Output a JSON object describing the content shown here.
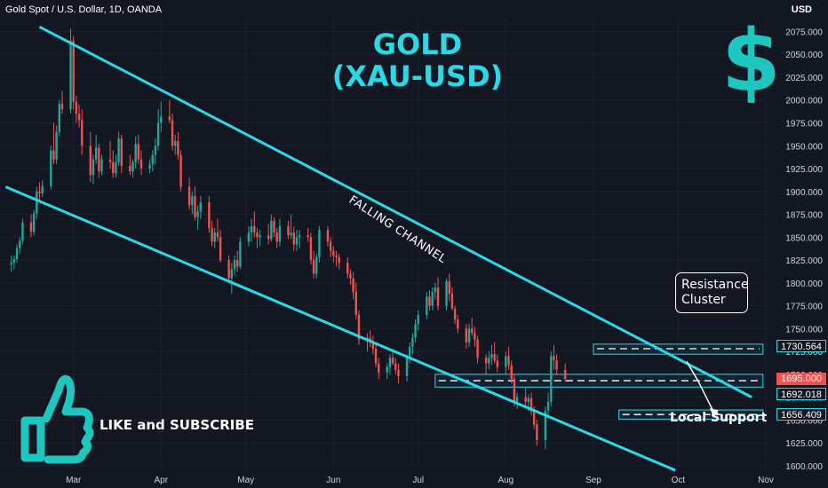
{
  "header": {
    "symbol_line": "Gold Spot / U.S. Dollar, 1D, OANDA",
    "currency": "USD"
  },
  "overlay": {
    "title_line1": "GOLD",
    "title_line2": "(XAU-USD)",
    "dollar_sign": "$",
    "dollar_icon": "dollar-icon",
    "like_text": "LIKE and SUBSCRIBE",
    "thumb_icon": "thumbs-up-icon",
    "channel_label": "FALLING CHANNEL",
    "resistance_label_line1": "Resistance",
    "resistance_label_line2": "Cluster",
    "support_label": "Local Support"
  },
  "colors": {
    "accent": "#2ad9e8",
    "bull": "#26a69a",
    "bear": "#ef5350",
    "background": "#131722",
    "grid": "#1e222d"
  },
  "chart_data": {
    "type": "candlestick",
    "title": "GOLD (XAU-USD)",
    "y_axis": {
      "range": [
        1597,
        2090
      ],
      "ticks": [
        1600,
        1625,
        1650,
        1675,
        1700,
        1725,
        1750,
        1775,
        1800,
        1825,
        1850,
        1875,
        1900,
        1925,
        1950,
        1975,
        2000,
        2025,
        2050,
        2075
      ],
      "tick_labels": [
        "1600.000",
        "1625.000",
        "1650.000",
        "1675.000",
        "1700.000",
        "1725.000",
        "1750.000",
        "1775.000",
        "1800.000",
        "1825.000",
        "1850.000",
        "1875.000",
        "1900.000",
        "1925.000",
        "1950.000",
        "1975.000",
        "2000.000",
        "2025.000",
        "2050.000",
        "2075.000"
      ]
    },
    "x_axis": {
      "range": [
        "2022-02-03",
        "2022-11-01"
      ],
      "tick_labels": [
        "Mar",
        "Apr",
        "May",
        "Jun",
        "Jul",
        "Aug",
        "Sep",
        "Oct",
        "Nov"
      ],
      "tick_dates": [
        "2022-03-01",
        "2022-04-01",
        "2022-05-01",
        "2022-06-01",
        "2022-07-01",
        "2022-08-01",
        "2022-09-01",
        "2022-10-01",
        "2022-11-01"
      ]
    },
    "price_tags": [
      {
        "value": "1730.564",
        "style": "outline"
      },
      {
        "value": "1695.000",
        "style": "bear"
      },
      {
        "value": "1692.018",
        "style": "outline"
      },
      {
        "value": "1656.409",
        "style": "outline"
      }
    ],
    "channel": {
      "upper": [
        {
          "date": "2022-02-17",
          "price": 2080
        },
        {
          "date": "2022-10-27",
          "price": 1675
        }
      ],
      "lower": [
        {
          "date": "2022-02-05",
          "price": 1905
        },
        {
          "date": "2022-09-30",
          "price": 1595
        }
      ]
    },
    "zones": [
      {
        "name": "resistance-cluster",
        "start": "2022-09-01",
        "end": "2022-10-31",
        "low": 1722,
        "high": 1733,
        "dashed_level": 1728
      },
      {
        "name": "mid-zone",
        "start": "2022-07-07",
        "end": "2022-10-31",
        "low": 1686,
        "high": 1700,
        "dashed_level": 1693
      },
      {
        "name": "local-support",
        "start": "2022-09-10",
        "end": "2022-10-31",
        "low": 1651,
        "high": 1661,
        "dashed_level": 1656
      }
    ],
    "projection": [
      {
        "date": "2022-10-04",
        "price": 1714
      },
      {
        "date": "2022-10-08",
        "price": 1693
      },
      {
        "date": "2022-10-14",
        "price": 1656
      }
    ],
    "ohlc_start": "2022-02-07",
    "ohlc": [
      [
        1820,
        1830,
        1812,
        1822
      ],
      [
        1822,
        1830,
        1815,
        1826
      ],
      [
        1826,
        1842,
        1822,
        1838
      ],
      [
        1838,
        1850,
        1832,
        1846
      ],
      [
        1846,
        1870,
        1842,
        1866
      ],
      [
        1866,
        1875,
        1850,
        1856
      ],
      [
        1856,
        1880,
        1852,
        1876
      ],
      [
        1876,
        1905,
        1870,
        1900
      ],
      [
        1900,
        1910,
        1890,
        1898
      ],
      [
        1898,
        1912,
        1894,
        1906
      ],
      [
        1906,
        1950,
        1902,
        1945
      ],
      [
        1945,
        1975,
        1930,
        1935
      ],
      [
        1935,
        1972,
        1930,
        1965
      ],
      [
        1965,
        2000,
        1960,
        1996
      ],
      [
        1996,
        2010,
        1985,
        1990
      ],
      [
        1990,
        2078,
        1985,
        2065
      ],
      [
        2065,
        2070,
        1990,
        1998
      ],
      [
        1998,
        2005,
        1975,
        1985
      ],
      [
        1985,
        1995,
        1970,
        1978
      ],
      [
        1978,
        1990,
        1940,
        1950
      ],
      [
        1950,
        1965,
        1910,
        1918
      ],
      [
        1918,
        1940,
        1908,
        1935
      ],
      [
        1935,
        1962,
        1930,
        1948
      ],
      [
        1948,
        1952,
        1915,
        1922
      ],
      [
        1922,
        1940,
        1918,
        1935
      ],
      [
        1935,
        1955,
        1925,
        1932
      ],
      [
        1932,
        1945,
        1915,
        1920
      ],
      [
        1920,
        1940,
        1915,
        1932
      ],
      [
        1932,
        1965,
        1928,
        1958
      ],
      [
        1958,
        1962,
        1920,
        1928
      ],
      [
        1928,
        1940,
        1918,
        1922
      ],
      [
        1922,
        1935,
        1915,
        1932
      ],
      [
        1932,
        1960,
        1925,
        1952
      ],
      [
        1952,
        1962,
        1930,
        1935
      ],
      [
        1935,
        1945,
        1918,
        1925
      ],
      [
        1925,
        1935,
        1920,
        1930
      ],
      [
        1930,
        1945,
        1922,
        1940
      ],
      [
        1940,
        1958,
        1930,
        1950
      ],
      [
        1950,
        1990,
        1945,
        1975
      ],
      [
        1975,
        1998,
        1965,
        1982
      ],
      [
        1982,
        2000,
        1975,
        1978
      ],
      [
        1978,
        1985,
        1945,
        1950
      ],
      [
        1950,
        1962,
        1940,
        1955
      ],
      [
        1955,
        1965,
        1935,
        1940
      ],
      [
        1940,
        1945,
        1900,
        1905
      ],
      [
        1905,
        1915,
        1880,
        1885
      ],
      [
        1885,
        1900,
        1875,
        1895
      ],
      [
        1895,
        1905,
        1868,
        1872
      ],
      [
        1872,
        1885,
        1858,
        1878
      ],
      [
        1878,
        1895,
        1870,
        1888
      ],
      [
        1888,
        1895,
        1855,
        1860
      ],
      [
        1860,
        1868,
        1840,
        1845
      ],
      [
        1845,
        1860,
        1838,
        1855
      ],
      [
        1855,
        1870,
        1845,
        1850
      ],
      [
        1850,
        1858,
        1822,
        1825
      ],
      [
        1825,
        1830,
        1800,
        1805
      ],
      [
        1805,
        1822,
        1788,
        1815
      ],
      [
        1815,
        1830,
        1808,
        1825
      ],
      [
        1825,
        1835,
        1812,
        1818
      ],
      [
        1818,
        1850,
        1815,
        1845
      ],
      [
        1845,
        1862,
        1840,
        1855
      ],
      [
        1855,
        1870,
        1845,
        1862
      ],
      [
        1862,
        1878,
        1850,
        1855
      ],
      [
        1855,
        1860,
        1838,
        1850
      ],
      [
        1850,
        1858,
        1840,
        1852
      ],
      [
        1852,
        1865,
        1842,
        1848
      ],
      [
        1848,
        1875,
        1845,
        1868
      ],
      [
        1868,
        1872,
        1850,
        1855
      ],
      [
        1855,
        1860,
        1838,
        1845
      ],
      [
        1845,
        1870,
        1840,
        1862
      ],
      [
        1862,
        1868,
        1848,
        1852
      ],
      [
        1852,
        1875,
        1848,
        1855
      ],
      [
        1855,
        1862,
        1835,
        1842
      ],
      [
        1842,
        1858,
        1835,
        1850
      ],
      [
        1850,
        1858,
        1838,
        1852
      ],
      [
        1852,
        1860,
        1845,
        1850
      ],
      [
        1850,
        1855,
        1820,
        1825
      ],
      [
        1825,
        1835,
        1805,
        1810
      ],
      [
        1810,
        1832,
        1805,
        1828
      ],
      [
        1828,
        1862,
        1822,
        1858
      ],
      [
        1858,
        1862,
        1840,
        1845
      ],
      [
        1845,
        1850,
        1828,
        1835
      ],
      [
        1835,
        1840,
        1822,
        1830
      ],
      [
        1830,
        1835,
        1818,
        1828
      ],
      [
        1828,
        1832,
        1815,
        1822
      ],
      [
        1822,
        1828,
        1805,
        1810
      ],
      [
        1810,
        1815,
        1798,
        1805
      ],
      [
        1805,
        1812,
        1782,
        1790
      ],
      [
        1790,
        1800,
        1760,
        1765
      ],
      [
        1765,
        1770,
        1732,
        1738
      ],
      [
        1738,
        1745,
        1725,
        1740
      ],
      [
        1740,
        1748,
        1730,
        1735
      ],
      [
        1735,
        1742,
        1722,
        1728
      ],
      [
        1728,
        1735,
        1708,
        1712
      ],
      [
        1712,
        1718,
        1695,
        1702
      ],
      [
        1702,
        1712,
        1695,
        1708
      ],
      [
        1708,
        1722,
        1700,
        1718
      ],
      [
        1718,
        1728,
        1710,
        1712
      ],
      [
        1712,
        1718,
        1700,
        1705
      ],
      [
        1705,
        1712,
        1690,
        1698
      ],
      [
        1698,
        1722,
        1692,
        1718
      ],
      [
        1718,
        1735,
        1712,
        1730
      ],
      [
        1730,
        1745,
        1722,
        1740
      ],
      [
        1740,
        1760,
        1735,
        1755
      ],
      [
        1755,
        1770,
        1748,
        1765
      ],
      [
        1765,
        1790,
        1760,
        1785
      ],
      [
        1785,
        1792,
        1770,
        1775
      ],
      [
        1775,
        1795,
        1770,
        1790
      ],
      [
        1790,
        1800,
        1782,
        1795
      ],
      [
        1795,
        1806,
        1770,
        1775
      ],
      [
        1775,
        1805,
        1770,
        1802
      ],
      [
        1802,
        1810,
        1780,
        1788
      ],
      [
        1788,
        1795,
        1770,
        1772
      ],
      [
        1772,
        1775,
        1755,
        1760
      ],
      [
        1760,
        1765,
        1745,
        1750
      ],
      [
        1750,
        1755,
        1728,
        1735
      ],
      [
        1735,
        1755,
        1730,
        1750
      ],
      [
        1750,
        1762,
        1742,
        1745
      ],
      [
        1745,
        1752,
        1730,
        1738
      ],
      [
        1738,
        1742,
        1712,
        1718
      ],
      [
        1718,
        1722,
        1700,
        1712
      ],
      [
        1712,
        1725,
        1705,
        1718
      ],
      [
        1718,
        1732,
        1710,
        1722
      ],
      [
        1722,
        1735,
        1712,
        1715
      ],
      [
        1715,
        1722,
        1702,
        1708
      ],
      [
        1708,
        1725,
        1700,
        1720
      ],
      [
        1720,
        1730,
        1705,
        1710
      ],
      [
        1710,
        1715,
        1690,
        1695
      ],
      [
        1695,
        1700,
        1665,
        1670
      ],
      [
        1670,
        1680,
        1662,
        1675
      ],
      [
        1675,
        1685,
        1665,
        1670
      ],
      [
        1670,
        1678,
        1660,
        1674
      ],
      [
        1674,
        1680,
        1655,
        1660
      ],
      [
        1660,
        1665,
        1640,
        1645
      ],
      [
        1645,
        1650,
        1622,
        1628
      ],
      [
        1628,
        1665,
        1618,
        1660
      ],
      [
        1660,
        1680,
        1652,
        1670
      ],
      [
        1670,
        1725,
        1665,
        1720
      ],
      [
        1720,
        1732,
        1705,
        1715
      ],
      [
        1715,
        1722,
        1700,
        1705
      ],
      [
        1705,
        1712,
        1692,
        1695
      ]
    ]
  }
}
